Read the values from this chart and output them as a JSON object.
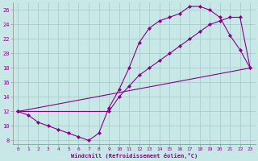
{
  "xlabel": "Windchill (Refroidissement éolien,°C)",
  "bg_color": "#c8e8e8",
  "line_color": "#880088",
  "grid_color": "#aacccc",
  "xlim": [
    -0.5,
    23.5
  ],
  "ylim": [
    7.5,
    27
  ],
  "xticks": [
    0,
    1,
    2,
    3,
    4,
    5,
    6,
    7,
    8,
    9,
    10,
    11,
    12,
    13,
    14,
    15,
    16,
    17,
    18,
    19,
    20,
    21,
    22,
    23
  ],
  "yticks": [
    8,
    10,
    12,
    14,
    16,
    18,
    20,
    22,
    24,
    26
  ],
  "series0_x": [
    0,
    1,
    2,
    3,
    4,
    5,
    6,
    7,
    8,
    9,
    10,
    11,
    12,
    13,
    14,
    15,
    16,
    17,
    18,
    19,
    20,
    21,
    22,
    23
  ],
  "series0_y": [
    12,
    11.5,
    10.5,
    10,
    9.5,
    9,
    8.5,
    8,
    9,
    12.5,
    15,
    18,
    21.5,
    23.5,
    24.5,
    25,
    25.5,
    26.5,
    26.5,
    26,
    25,
    22.5,
    20.5,
    18
  ],
  "series1_x": [
    0,
    9,
    10,
    11,
    12,
    13,
    14,
    15,
    16,
    17,
    18,
    19,
    20,
    21,
    22,
    23
  ],
  "series1_y": [
    12,
    12,
    14,
    15.5,
    17,
    18,
    19,
    20,
    21,
    22,
    23,
    24,
    24.5,
    25,
    25,
    18
  ],
  "series2_x": [
    0,
    23
  ],
  "series2_y": [
    12,
    18
  ]
}
